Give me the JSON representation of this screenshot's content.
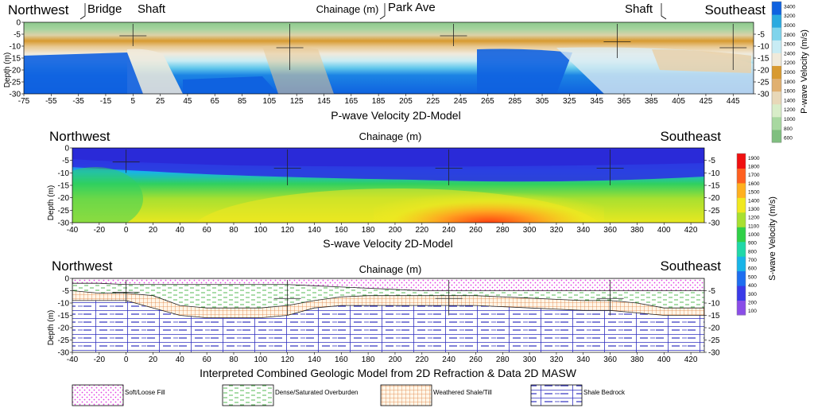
{
  "chart_data": [
    {
      "type": "heatmap",
      "title": "P-wave Velocity 2D-Model",
      "top_label": "Chainage (m)",
      "left_title": "Northwest",
      "right_title": "Southeast",
      "annotations": [
        "Bridge",
        "Shaft",
        "Park Ave",
        "Shaft"
      ],
      "ylabel": "Depth (m)",
      "xlim": [
        -75,
        460
      ],
      "ylim": [
        -30,
        0
      ],
      "x_ticks": [
        -75,
        -55,
        -35,
        -15,
        5,
        25,
        45,
        65,
        85,
        105,
        125,
        145,
        165,
        185,
        205,
        225,
        245,
        265,
        285,
        305,
        325,
        345,
        365,
        385,
        405,
        425,
        445
      ],
      "y_ticks": [
        0,
        -5,
        -10,
        -15,
        -20,
        -25,
        -30
      ],
      "y_ticks_right": [
        -5,
        -10,
        -15,
        -20,
        -25,
        -30
      ],
      "colorbar": {
        "label": "P-wave Velocity (m/s)",
        "ticks": [
          600,
          800,
          1000,
          1200,
          1400,
          1600,
          1800,
          2000,
          2200,
          2400,
          2600,
          2800,
          3000,
          3200,
          3400
        ],
        "range": [
          500,
          3500
        ],
        "colors": [
          "#7fbf7f",
          "#a8d8a0",
          "#d8edc8",
          "#e8d8b8",
          "#e0b070",
          "#d89a30",
          "#f0eada",
          "#c8ecf4",
          "#7fd4ec",
          "#2aaae0",
          "#0f62e0"
        ]
      },
      "boreholes": [
        {
          "x": 5,
          "depth": -10
        },
        {
          "x": 120,
          "depth": -20
        },
        {
          "x": 240,
          "depth": -10
        },
        {
          "x": 360,
          "depth": -15
        },
        {
          "x": 445,
          "depth": -20
        }
      ]
    },
    {
      "type": "heatmap",
      "title": "S-wave Velocity 2D-Model",
      "top_label": "Chainage (m)",
      "left_title": "Northwest",
      "right_title": "Southeast",
      "ylabel": "Depth (m)",
      "xlim": [
        -40,
        430
      ],
      "ylim": [
        -30,
        0
      ],
      "x_ticks": [
        -40,
        -20,
        0,
        20,
        40,
        60,
        80,
        100,
        120,
        140,
        160,
        180,
        200,
        220,
        240,
        260,
        280,
        300,
        320,
        340,
        360,
        380,
        400,
        420
      ],
      "y_ticks": [
        0,
        -5,
        -10,
        -15,
        -20,
        -25,
        -30
      ],
      "y_ticks_right": [
        -5,
        -10,
        -15,
        -20,
        -25,
        -30
      ],
      "colorbar": {
        "label": "S-wave Velocity (m/s)",
        "ticks": [
          100,
          200,
          300,
          400,
          500,
          600,
          700,
          800,
          900,
          1000,
          1100,
          1200,
          1300,
          1400,
          1500,
          1600,
          1700,
          1800,
          1900
        ],
        "range": [
          50,
          1950
        ],
        "colors": [
          "#8a4de8",
          "#3a3ae8",
          "#1e6ef0",
          "#18b4e8",
          "#20d8a8",
          "#30d048",
          "#a8e030",
          "#f0e820",
          "#ffb020",
          "#ff6020",
          "#f01010"
        ]
      },
      "boreholes": [
        {
          "x": 0,
          "depth": -10
        },
        {
          "x": 120,
          "depth": -15
        },
        {
          "x": 240,
          "depth": -15
        },
        {
          "x": 360,
          "depth": -15
        }
      ]
    },
    {
      "type": "area",
      "title": "Interpreted Combined Geologic Model from 2D Refraction &  Data 2D MASW",
      "top_label": "Chainage (m)",
      "left_title": "Northwest",
      "right_title": "Southeast",
      "ylabel": "Depth (m)",
      "xlim": [
        -40,
        430
      ],
      "ylim": [
        -30,
        0
      ],
      "x_ticks": [
        -40,
        -20,
        0,
        20,
        40,
        60,
        80,
        100,
        120,
        140,
        160,
        180,
        200,
        220,
        240,
        260,
        280,
        300,
        320,
        340,
        360,
        380,
        400,
        420
      ],
      "y_ticks": [
        0,
        -5,
        -10,
        -15,
        -20,
        -25,
        -30
      ],
      "y_ticks_right": [
        -5,
        -10,
        -15,
        -20,
        -25,
        -30
      ],
      "legend": [
        {
          "label": "Soft/Loose Fill",
          "pattern": "dots",
          "color": "#e040e0"
        },
        {
          "label": "Dense/Saturated Overburden",
          "pattern": "dashes",
          "color": "#40b040"
        },
        {
          "label": "Weathered Shale/Till",
          "pattern": "grid",
          "color": "#e08040"
        },
        {
          "label": "Shale Bedrock",
          "pattern": "bedrock",
          "color": "#3030c0"
        }
      ],
      "boundaries": {
        "x": [
          -40,
          -20,
          0,
          20,
          40,
          60,
          80,
          100,
          120,
          140,
          160,
          180,
          200,
          220,
          240,
          260,
          280,
          300,
          320,
          340,
          360,
          380,
          400,
          420,
          430
        ],
        "fill_bottom": [
          -2,
          -2,
          -2.5,
          -2.5,
          -2.5,
          -2.5,
          -2.5,
          -2.5,
          -2.5,
          -3,
          -3.5,
          -4,
          -4.5,
          -5,
          -5,
          -5,
          -5,
          -5,
          -5,
          -5,
          -5,
          -5,
          -5,
          -5,
          -5
        ],
        "overburden_bottom": [
          -5,
          -6,
          -6,
          -7,
          -11,
          -12,
          -12,
          -12,
          -11,
          -9,
          -7.5,
          -7,
          -7,
          -7,
          -7,
          -7,
          -7.5,
          -8,
          -8.5,
          -9,
          -9,
          -10,
          -12,
          -12,
          -12
        ],
        "till_bottom": [
          -9,
          -9,
          -9,
          -12,
          -15,
          -16,
          -16,
          -16,
          -15,
          -12,
          -11,
          -11,
          -11,
          -11,
          -11,
          -11,
          -11.5,
          -12,
          -12.5,
          -13,
          -13,
          -14,
          -15,
          -15,
          -15
        ]
      },
      "boreholes": [
        {
          "x": 0,
          "depth": -10
        },
        {
          "x": 120,
          "depth": -15
        },
        {
          "x": 240,
          "depth": -15
        },
        {
          "x": 360,
          "depth": -15
        }
      ]
    }
  ]
}
